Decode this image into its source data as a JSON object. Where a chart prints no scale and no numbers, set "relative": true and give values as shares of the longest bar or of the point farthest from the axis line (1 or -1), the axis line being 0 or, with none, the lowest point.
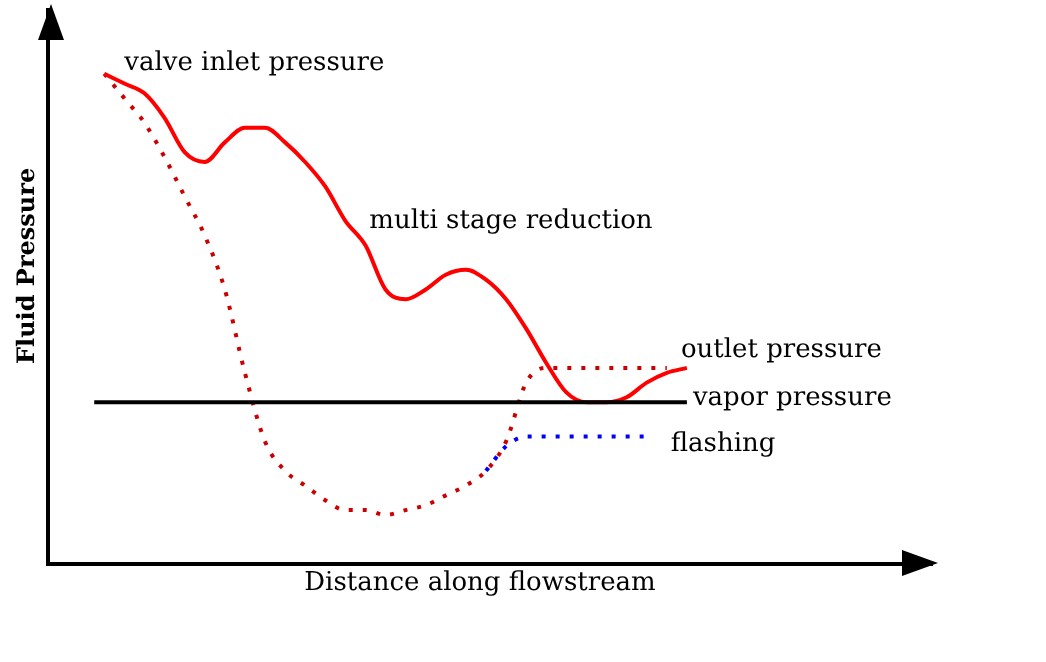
{
  "chart_data": {
    "type": "line",
    "relative": true,
    "xlabel": "Distance along flowstream",
    "ylabel": "Fluid Pressure",
    "categories": [
      null,
      null,
      null,
      null,
      null,
      null,
      null,
      null,
      null,
      null,
      null,
      null,
      null,
      null,
      null,
      null,
      null,
      null,
      null,
      null,
      null,
      null,
      null,
      null,
      null,
      null,
      null,
      null,
      null,
      null
    ],
    "series": [
      {
        "name": "multi stage reduction",
        "color": "#ff0000",
        "line_style": "solid",
        "values": [
          1.0,
          0.98,
          0.96,
          0.91,
          0.84,
          0.82,
          0.86,
          0.89,
          0.89,
          0.86,
          0.82,
          0.77,
          0.7,
          0.65,
          0.56,
          0.54,
          0.56,
          0.59,
          0.6,
          0.58,
          0.54,
          0.48,
          0.41,
          0.35,
          0.33,
          0.33,
          0.34,
          0.37,
          0.39,
          0.4
        ]
      },
      {
        "color": "#cc0000",
        "line_style": "dotted",
        "values": [
          1.0,
          0.95,
          0.9,
          0.83,
          0.75,
          0.67,
          0.56,
          0.39,
          0.25,
          0.19,
          0.16,
          0.13,
          0.11,
          0.11,
          0.1,
          0.11,
          0.12,
          0.14,
          0.16,
          0.19,
          0.25,
          0.37,
          0.4,
          0.4,
          0.4,
          0.4,
          0.4,
          0.4,
          0.4,
          null
        ]
      },
      {
        "name": "flashing",
        "color": "#0000ff",
        "line_style": "dotted",
        "values": [
          null,
          null,
          null,
          null,
          null,
          null,
          null,
          null,
          null,
          null,
          null,
          null,
          null,
          null,
          null,
          null,
          null,
          null,
          null,
          0.19,
          0.24,
          0.26,
          0.26,
          0.26,
          0.26,
          0.26,
          0.26,
          0.26,
          null,
          null
        ]
      }
    ],
    "ref_lines": [
      {
        "axis": "y",
        "value": 0.33,
        "label": "vapor pressure",
        "color": "#000000"
      }
    ],
    "annotations": [
      "valve inlet pressure",
      "outlet pressure"
    ],
    "legend": false,
    "grid": false,
    "marker": "none"
  }
}
